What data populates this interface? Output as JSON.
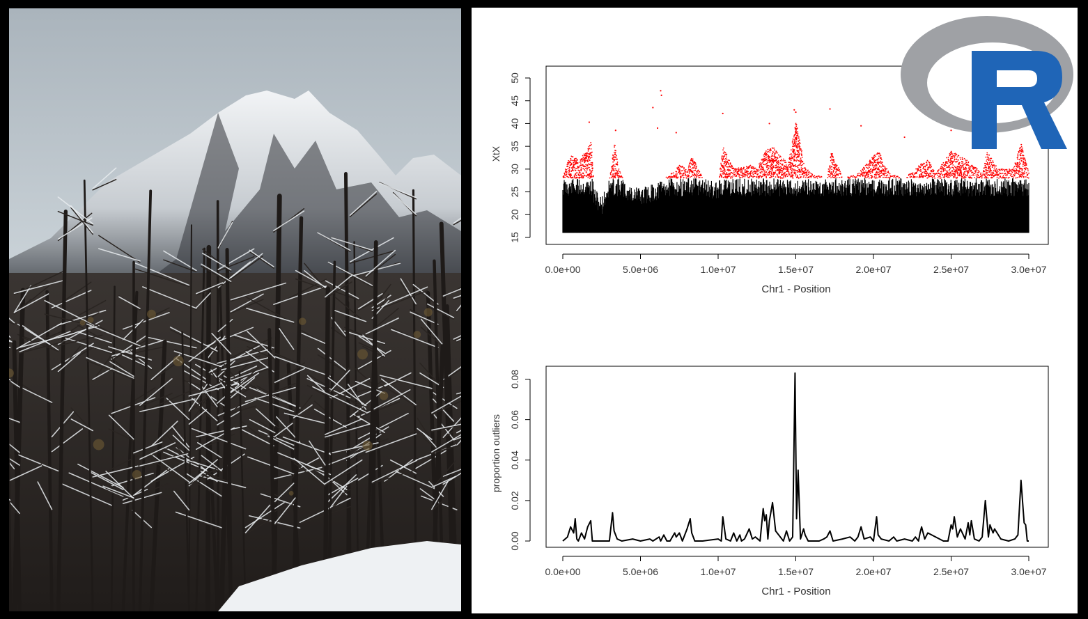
{
  "photo": {
    "icon": "snowy-mountain-forest-photo",
    "colors": {
      "sky": "#c7d0d6",
      "rock": "#3b3f44",
      "snow": "#eef1f3",
      "trees": "#2a2623"
    }
  },
  "logo": {
    "icon": "r-logo-icon",
    "colors": {
      "ring": "#9fa1a5",
      "letter": "#1f65b7"
    }
  },
  "chart_data": [
    {
      "type": "scatter",
      "title": "",
      "xlabel": "Chr1 - Position",
      "ylabel": "XtX",
      "xlim": [
        0,
        30000000
      ],
      "ylim": [
        15,
        50
      ],
      "xticks": [
        "0.0e+00",
        "5.0e+06",
        "1.0e+07",
        "1.5e+07",
        "2.0e+07",
        "2.5e+07",
        "3.0e+07"
      ],
      "yticks": [
        "15",
        "20",
        "25",
        "30",
        "35",
        "40",
        "45",
        "50"
      ],
      "outlier_threshold": 28,
      "colors": {
        "points": "#000000",
        "outliers": "#ff0000"
      },
      "density_profile": {
        "x": [
          0,
          500000,
          1000000,
          1500000,
          1800000,
          2000000,
          2500000,
          3000000,
          3300000,
          3600000,
          4000000,
          5000000,
          6000000,
          7000000,
          7500000,
          8000000,
          8300000,
          9000000,
          10000000,
          10300000,
          11000000,
          12000000,
          12500000,
          13000000,
          13500000,
          14000000,
          14500000,
          15000000,
          15500000,
          16000000,
          17000000,
          17300000,
          18000000,
          19000000,
          20000000,
          20300000,
          21000000,
          22000000,
          23000000,
          23500000,
          24000000,
          25000000,
          25500000,
          26000000,
          27000000,
          27300000,
          28000000,
          29000000,
          29500000,
          30000000
        ],
        "max_xtx": [
          29,
          33,
          32,
          34,
          36,
          26,
          24,
          28,
          36,
          30,
          27,
          26,
          27,
          29,
          31,
          30,
          33,
          28,
          27,
          35,
          30,
          31,
          30,
          34,
          35,
          33,
          31,
          41,
          31,
          29,
          28,
          34,
          28,
          29,
          33,
          34,
          29,
          28,
          31,
          32,
          29,
          34,
          33,
          32,
          29,
          34,
          30,
          30,
          36,
          29
        ]
      },
      "notable_points": [
        {
          "x": 5800000,
          "y": 43.5
        },
        {
          "x": 6300000,
          "y": 47.2
        },
        {
          "x": 6350000,
          "y": 46.2
        },
        {
          "x": 10300000,
          "y": 42.2
        },
        {
          "x": 14900000,
          "y": 43.0
        },
        {
          "x": 15000000,
          "y": 42.5
        },
        {
          "x": 17200000,
          "y": 43.2
        },
        {
          "x": 6100000,
          "y": 39.0
        },
        {
          "x": 1700000,
          "y": 40.3
        },
        {
          "x": 3400000,
          "y": 38.5
        },
        {
          "x": 13300000,
          "y": 40.0
        },
        {
          "x": 19200000,
          "y": 39.5
        },
        {
          "x": 25000000,
          "y": 38.5
        },
        {
          "x": 22000000,
          "y": 37.0
        },
        {
          "x": 7300000,
          "y": 38.0
        }
      ]
    },
    {
      "type": "line",
      "title": "",
      "xlabel": "Chr1 - Position",
      "ylabel": "proportion outliers",
      "xlim": [
        0,
        30000000
      ],
      "ylim": [
        0,
        0.085
      ],
      "xticks": [
        "0.0e+00",
        "5.0e+06",
        "1.0e+07",
        "1.5e+07",
        "2.0e+07",
        "2.5e+07",
        "3.0e+07"
      ],
      "yticks": [
        "0.00",
        "0.02",
        "0.04",
        "0.06",
        "0.08"
      ],
      "x": [
        0,
        300000,
        500000,
        700000,
        800000,
        900000,
        1000000,
        1200000,
        1400000,
        1600000,
        1800000,
        1900000,
        2100000,
        3000000,
        3200000,
        3300000,
        3500000,
        3800000,
        4500000,
        5000000,
        5600000,
        5800000,
        6200000,
        6300000,
        6500000,
        6700000,
        6900000,
        7200000,
        7300000,
        7500000,
        7700000,
        8000000,
        8200000,
        8300000,
        8500000,
        9000000,
        10000000,
        10200000,
        10300000,
        10500000,
        10800000,
        11000000,
        11200000,
        11400000,
        11500000,
        11700000,
        12000000,
        12200000,
        12400000,
        12700000,
        12900000,
        13000000,
        13100000,
        13200000,
        13300000,
        13500000,
        13700000,
        14000000,
        14200000,
        14400000,
        14600000,
        14800000,
        14950000,
        15050000,
        15150000,
        15300000,
        15500000,
        15600000,
        15800000,
        16500000,
        16800000,
        17000000,
        17200000,
        17400000,
        18000000,
        18500000,
        18800000,
        19000000,
        19200000,
        19400000,
        19800000,
        20000000,
        20200000,
        20300000,
        20500000,
        21000000,
        21300000,
        21500000,
        22000000,
        22500000,
        22700000,
        22900000,
        23000000,
        23100000,
        23300000,
        23500000,
        24500000,
        24800000,
        25000000,
        25100000,
        25200000,
        25400000,
        25600000,
        25900000,
        26100000,
        26200000,
        26300000,
        26500000,
        26800000,
        27000000,
        27200000,
        27400000,
        27500000,
        27700000,
        27800000,
        28200000,
        28700000,
        29100000,
        29300000,
        29500000,
        29700000,
        29800000,
        29900000,
        30000000
      ],
      "y": [
        0.0,
        0.002,
        0.007,
        0.004,
        0.011,
        0.001,
        0.0,
        0.004,
        0.001,
        0.007,
        0.01,
        0.0,
        0.0,
        0.0,
        0.014,
        0.005,
        0.001,
        0.0,
        0.001,
        0.0,
        0.001,
        0.0,
        0.002,
        0.0,
        0.003,
        0.0,
        0.0,
        0.004,
        0.002,
        0.004,
        0.0,
        0.006,
        0.011,
        0.004,
        0.0,
        0.0,
        0.001,
        0.0,
        0.012,
        0.001,
        0.0,
        0.004,
        0.0,
        0.003,
        0.0,
        0.001,
        0.006,
        0.001,
        0.002,
        0.0,
        0.016,
        0.01,
        0.013,
        0.001,
        0.01,
        0.019,
        0.005,
        0.002,
        0.0,
        0.005,
        0.0,
        0.002,
        0.083,
        0.011,
        0.035,
        0.001,
        0.006,
        0.003,
        0.0,
        0.0,
        0.001,
        0.002,
        0.005,
        0.0,
        0.001,
        0.002,
        0.0,
        0.002,
        0.007,
        0.001,
        0.002,
        0.0,
        0.012,
        0.003,
        0.001,
        0.0,
        0.002,
        0.0,
        0.001,
        0.0,
        0.002,
        0.0,
        0.004,
        0.007,
        0.001,
        0.004,
        0.0,
        0.0,
        0.008,
        0.006,
        0.012,
        0.002,
        0.006,
        0.001,
        0.009,
        0.003,
        0.01,
        0.001,
        0.0,
        0.002,
        0.02,
        0.002,
        0.008,
        0.004,
        0.006,
        0.001,
        0.0,
        0.001,
        0.003,
        0.03,
        0.009,
        0.008,
        0.0,
        0.0
      ]
    }
  ]
}
